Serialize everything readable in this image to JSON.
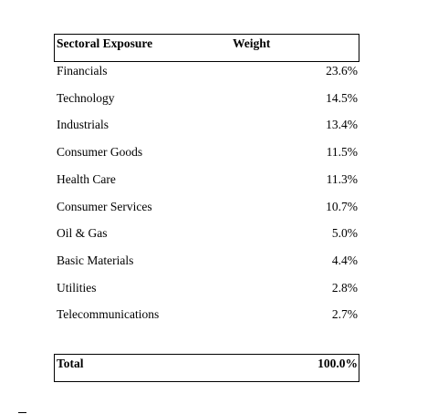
{
  "table": {
    "header": [
      "Sectoral Exposure",
      "Weight"
    ],
    "rows": [
      [
        "Financials",
        "23.6%"
      ],
      [
        "Technology",
        "14.5%"
      ],
      [
        "Industrials",
        "13.4%"
      ],
      [
        "Consumer Goods",
        "11.5%"
      ],
      [
        "Health Care",
        "11.3%"
      ],
      [
        "Consumer Services",
        "10.7%"
      ],
      [
        "Oil & Gas",
        "5.0%"
      ],
      [
        "Basic Materials",
        "4.4%"
      ],
      [
        "Utilities",
        "2.8%"
      ],
      [
        "Telecommunications",
        "2.7%"
      ]
    ],
    "total": [
      "Total",
      "100.0%"
    ]
  }
}
